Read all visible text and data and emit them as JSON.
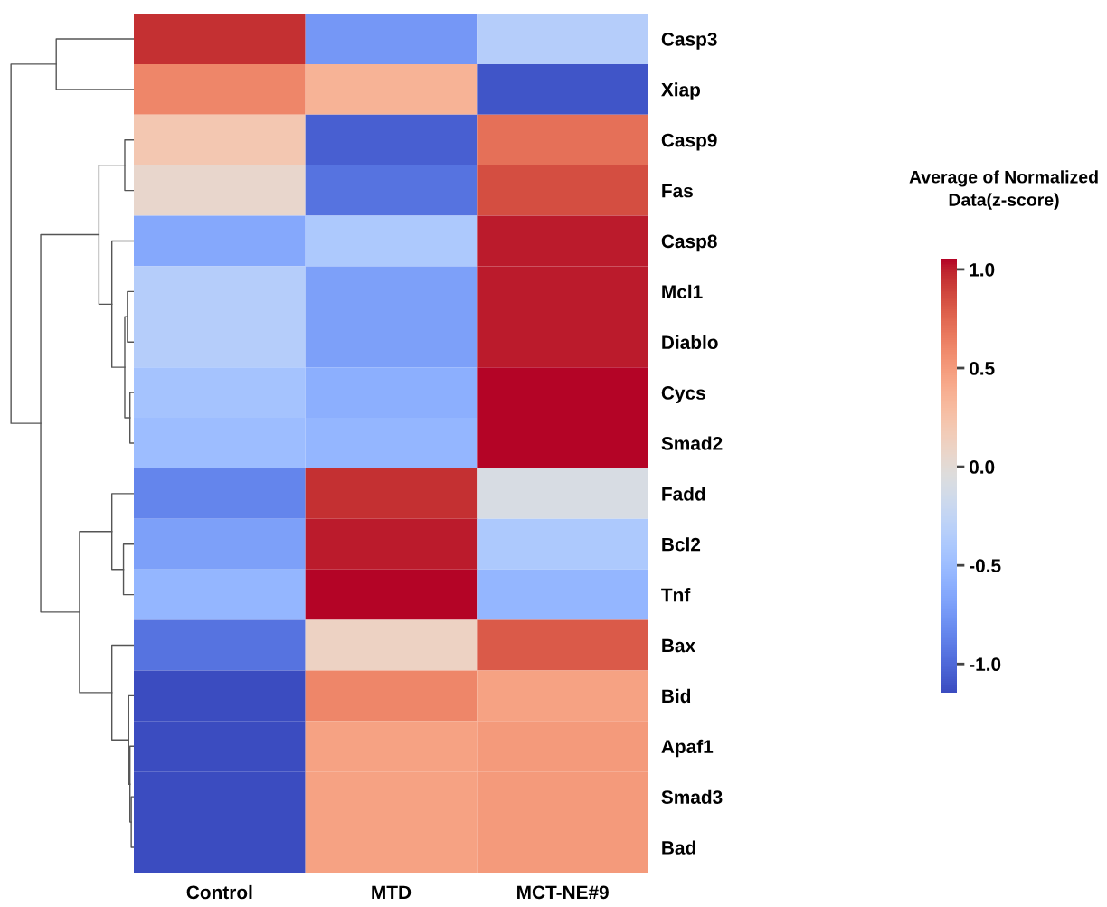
{
  "chart_data": {
    "type": "heatmap",
    "clabel": "Average of Normalized\nData(z-score)",
    "categories": [
      "Control",
      "MTD",
      "MCT-NE#9"
    ],
    "y_categories": [
      "Casp3",
      "Xiap",
      "Casp9",
      "Fas",
      "Casp8",
      "Mcl1",
      "Diablo",
      "Cycs",
      "Smad2",
      "Fadd",
      "Bcl2",
      "Tnf",
      "Bax",
      "Bid",
      "Apaf1",
      "Smad3",
      "Bad"
    ],
    "cells": [
      [
        0.95,
        -0.75,
        -0.35
      ],
      [
        0.6,
        0.35,
        -1.1
      ],
      [
        0.2,
        -1.05,
        0.7
      ],
      [
        0.05,
        -0.95,
        0.85
      ],
      [
        -0.65,
        -0.4,
        1.0
      ],
      [
        -0.35,
        -0.7,
        1.0
      ],
      [
        -0.35,
        -0.7,
        1.0
      ],
      [
        -0.45,
        -0.6,
        1.05
      ],
      [
        -0.5,
        -0.55,
        1.05
      ],
      [
        -0.85,
        0.95,
        -0.1
      ],
      [
        -0.7,
        1.0,
        -0.4
      ],
      [
        -0.55,
        1.05,
        -0.55
      ],
      [
        -0.95,
        0.1,
        0.8
      ],
      [
        -1.15,
        0.6,
        0.45
      ],
      [
        -1.15,
        0.45,
        0.5
      ],
      [
        -1.15,
        0.45,
        0.5
      ],
      [
        -1.15,
        0.45,
        0.5
      ]
    ],
    "clim": [
      -1.15,
      1.05
    ],
    "cticks": [
      {
        "value": -1.0,
        "label": "-1.0"
      },
      {
        "value": -0.5,
        "label": "-0.5"
      },
      {
        "value": 0.0,
        "label": "0.0"
      },
      {
        "value": 0.5,
        "label": "0.5"
      },
      {
        "value": 1.0,
        "label": "1.0"
      }
    ]
  }
}
